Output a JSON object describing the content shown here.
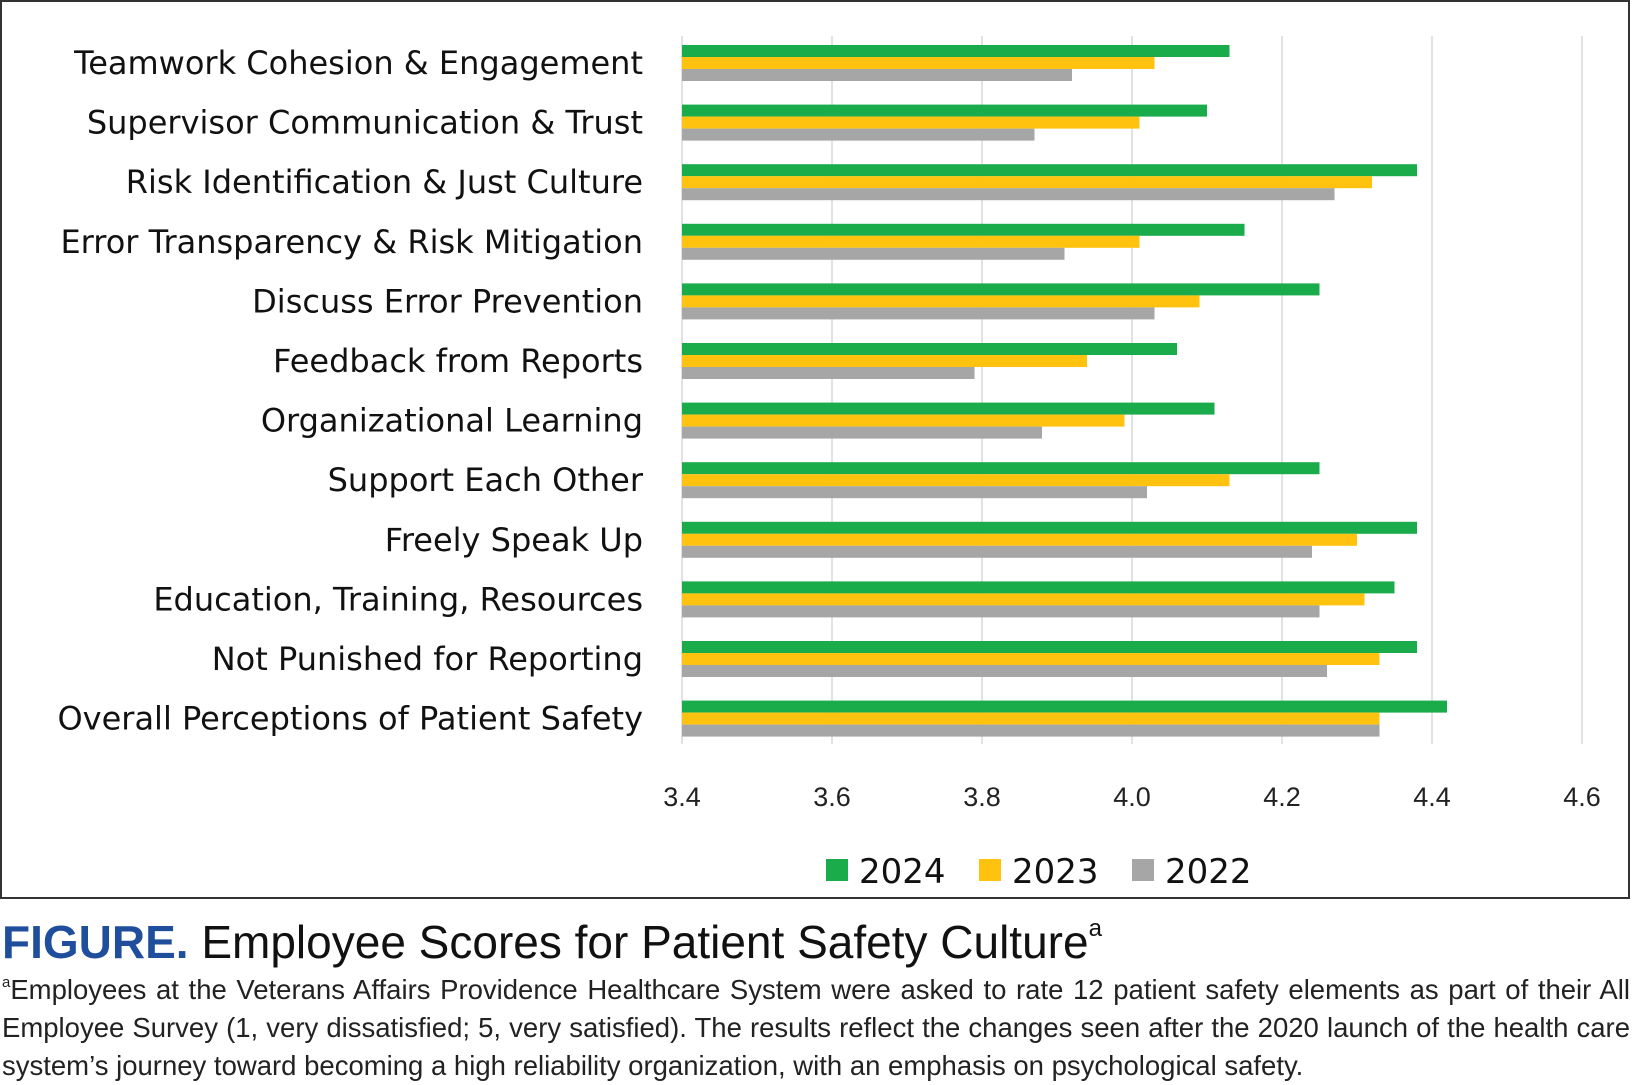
{
  "chart_data": {
    "type": "bar",
    "orientation": "horizontal",
    "categories": [
      "Teamwork Cohesion & Engagement",
      "Supervisor Communication & Trust",
      "Risk Identification & Just Culture",
      "Error Transparency & Risk Mitigation",
      "Discuss Error Prevention",
      "Feedback from Reports",
      "Organizational Learning",
      "Support Each Other",
      "Freely Speak Up",
      "Education, Training, Resources",
      "Not Punished for Reporting",
      "Overall Perceptions of Patient Safety"
    ],
    "series": [
      {
        "name": "2024",
        "color": "#1aab4b",
        "values": [
          4.13,
          4.1,
          4.38,
          4.15,
          4.25,
          4.06,
          4.11,
          4.25,
          4.38,
          4.35,
          4.38,
          4.42
        ]
      },
      {
        "name": "2023",
        "color": "#ffc20e",
        "values": [
          4.03,
          4.01,
          4.32,
          4.01,
          4.09,
          3.94,
          3.99,
          4.13,
          4.3,
          4.31,
          4.33,
          4.33
        ]
      },
      {
        "name": "2022",
        "color": "#a6a6a6",
        "values": [
          3.92,
          3.87,
          4.27,
          3.91,
          4.03,
          3.79,
          3.88,
          4.02,
          4.24,
          4.25,
          4.26,
          4.33
        ]
      }
    ],
    "xlim": [
      3.4,
      4.6
    ],
    "xticks": [
      "3.4",
      "3.6",
      "3.8",
      "4.0",
      "4.2",
      "4.4",
      "4.6"
    ],
    "grid": true,
    "legend_position": "bottom-center",
    "title": "",
    "xlabel": "",
    "ylabel": ""
  },
  "caption": {
    "label": "FIGURE.",
    "title": "Employee Scores for Patient Safety Culture",
    "footnote_marker": "a",
    "note": "Employees at the Veterans Affairs Providence Healthcare System were asked to rate 12 patient safety elements as part of their All Employee Survey (1, very dissatisfied; 5, very satisfied). The results reflect the changes seen after the 2020 launch of the health care system’s journey toward becoming a high reliability organization, with an emphasis on psychological safety."
  }
}
